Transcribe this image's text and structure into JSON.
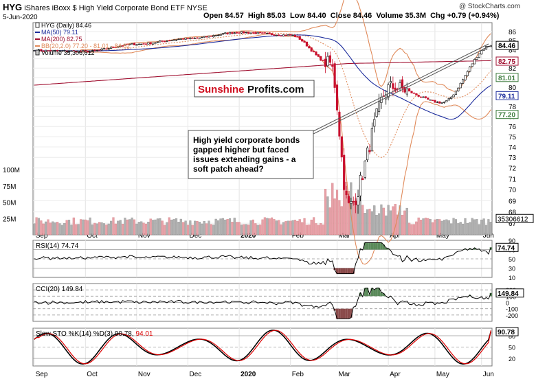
{
  "header": {
    "symbol": "HYG",
    "name": "iShares iBoxx $ High Yield Corporate Bond ETF",
    "exchange": "NYSE",
    "date": "5-Jun-2020",
    "open_label": "Open",
    "open": "84.57",
    "high_label": "High",
    "high": "85.03",
    "low_label": "Low",
    "low": "84.40",
    "close_label": "Close",
    "close": "84.46",
    "volume_label": "Volume",
    "volume": "35.3M",
    "chg_label": "Chg",
    "chg": "+0.79 (+0.94%)",
    "watermark": "@ StockCharts.com"
  },
  "legend": {
    "price": "HYG (Daily) 84.46",
    "ma50": "MA(50) 79.11",
    "ma200": "MA(200) 82.75",
    "bb": "BB(20,2.0) 77.20 - 81.01 - 84.82",
    "volume": "Volume 35,306,612"
  },
  "logo": {
    "part1": "Sunshine",
    "part2": "Profits.com"
  },
  "annotation": "High yield corporate bonds gapped higher but faced issues extending gains - a soft patch ahead?",
  "colors": {
    "up": "#000000",
    "down": "#c8102e",
    "ma50": "#1c2c9c",
    "ma200": "#a01030",
    "bb": "#e08a5a",
    "vol_up": "#b0b0b0",
    "vol_down": "#e8a0a8",
    "osc_pos": "#5a8a5a",
    "osc_neg": "#8a4a4a",
    "sto_k": "#000000",
    "sto_d": "#dd0000",
    "tag_ma50": "#1c2c9c",
    "tag_ma200": "#a01030",
    "tag_bb": "#3a7a3a"
  },
  "chart_data": [
    {
      "type": "candlestick",
      "title": "HYG (Daily)",
      "x_tick_labels": [
        "Sep",
        "Oct",
        "Nov",
        "Dec",
        "2020",
        "Feb",
        "Mar",
        "Apr",
        "May",
        "Jun"
      ],
      "y_ticks": [
        67,
        68,
        69,
        70,
        71,
        72,
        73,
        74,
        75,
        76,
        77,
        78,
        79,
        80,
        81,
        82,
        83,
        84,
        85,
        86
      ],
      "ylim": [
        66,
        87
      ],
      "y_scale": "log",
      "volume_ticks": [
        "25M",
        "50M",
        "75M",
        "100M"
      ],
      "price_tags": {
        "close": "84.46",
        "ma200": "82.75",
        "bb_mid": "81.01",
        "ma50": "79.11",
        "bb_lower": "77.20",
        "volume": "35306612"
      },
      "approx_close_path": [
        {
          "x": "Sep",
          "y": 83.9
        },
        {
          "x": "Oct",
          "y": 83.8
        },
        {
          "x": "Nov",
          "y": 84.6
        },
        {
          "x": "Dec",
          "y": 85.2
        },
        {
          "x": "2020",
          "y": 85.9
        },
        {
          "x": "Feb",
          "y": 85.6
        },
        {
          "x": "Mar",
          "y": 82.5
        },
        {
          "x": "Mar",
          "y": 68.5
        },
        {
          "x": "Apr",
          "y": 80.0
        },
        {
          "x": "May",
          "y": 78.4
        },
        {
          "x": "Jun",
          "y": 84.46
        }
      ],
      "series": [
        {
          "name": "MA(50)",
          "last": 79.11
        },
        {
          "name": "MA(200)",
          "last": 82.75
        },
        {
          "name": "BB(20,2.0)",
          "lower": 77.2,
          "mid": 81.01,
          "upper": 84.82
        }
      ]
    },
    {
      "type": "line",
      "title": "RSI(14)",
      "value": 74.74,
      "ylim": [
        10,
        90
      ],
      "y_ticks": [
        10,
        30,
        50,
        70,
        90
      ]
    },
    {
      "type": "line",
      "title": "CCI(20)",
      "value": 149.84,
      "y_ticks": [
        -200,
        -100,
        0,
        100,
        200
      ]
    },
    {
      "type": "line",
      "title": "Slow STO %K(14) %D(3)",
      "k": 90.78,
      "d": 94.01,
      "ylim": [
        0,
        100
      ],
      "y_ticks": [
        20,
        50,
        80
      ]
    }
  ]
}
